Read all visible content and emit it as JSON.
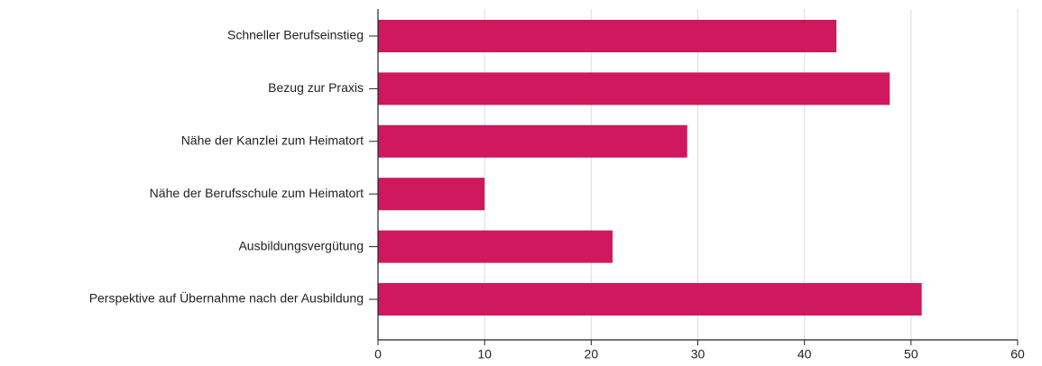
{
  "chart_data": {
    "type": "bar",
    "orientation": "horizontal",
    "categories": [
      "Schneller Berufseinstieg",
      "Bezug zur Praxis",
      "Nähe der Kanzlei zum Heimatort",
      "Nähe der Berufsschule zum Heimatort",
      "Ausbildungsvergütung",
      "Perspektive auf Übernahme nach der Ausbildung"
    ],
    "values": [
      43,
      48,
      29,
      10,
      22,
      51
    ],
    "color": "#cf185d",
    "xlim": [
      0,
      60
    ],
    "xticks": [
      0,
      10,
      20,
      30,
      40,
      50,
      60
    ],
    "grid": true
  }
}
